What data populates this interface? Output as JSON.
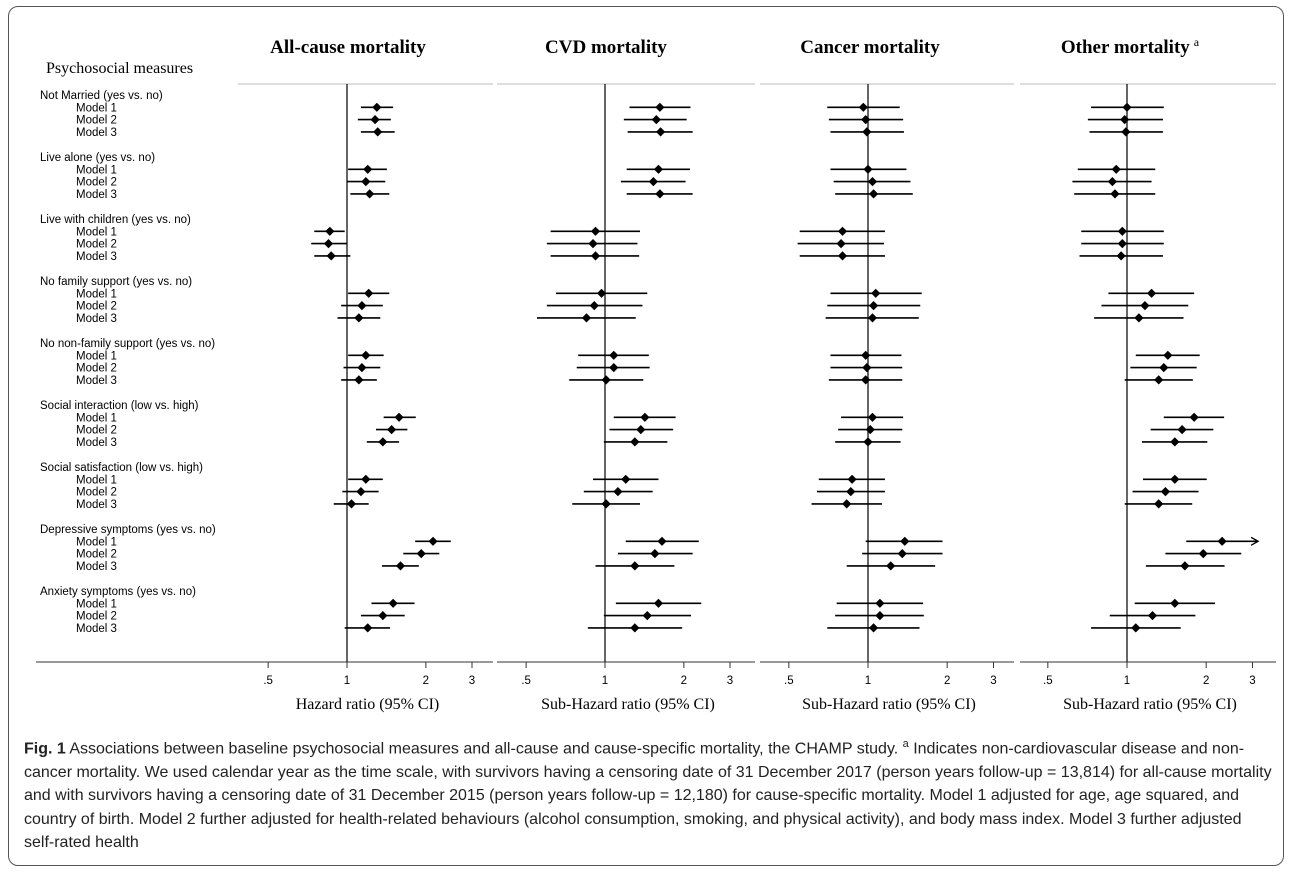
{
  "figure": {
    "row_header": "Psychosocial measures",
    "caption_label": "Fig. 1",
    "caption_text_1": " Associations between baseline psychosocial measures and all-cause and cause-specific mortality, the CHAMP study. ",
    "caption_footnote_mark": "a",
    "caption_text_2": " Indicates non-cardiovascular disease and non-cancer mortality. We used calendar year as the time scale, with survivors having a censoring date of 31 December 2017 (person years follow-up = 13,814) for all-cause mortality and with survivors having a censoring date of 31 December 2015 (person years follow-up = 12,180) for cause-specific mortality. Model 1 adjusted for age, age squared, and country of birth. Model 2 further adjusted for health-related behaviours (alcohol consumption, smoking, and physical activity), and body mass index. Model 3 further adjusted self-rated health"
  },
  "colors": {
    "ink": "#000000",
    "axis": "#333333",
    "grid": "#bbbbbb"
  },
  "chart_data": {
    "type": "forest",
    "x_scale": "log",
    "xlim": [
      0.42,
      3.5
    ],
    "reference_line": 1,
    "ticks": [
      {
        "value": 0.5,
        "label": ".5"
      },
      {
        "value": 1,
        "label": "1"
      },
      {
        "value": 2,
        "label": "2"
      },
      {
        "value": 3,
        "label": "3"
      }
    ],
    "groups": [
      {
        "label": "Not Married (yes vs. no)",
        "models": [
          "Model 1",
          "Model 2",
          "Model 3"
        ]
      },
      {
        "label": "Live alone (yes vs. no)",
        "models": [
          "Model 1",
          "Model 2",
          "Model 3"
        ]
      },
      {
        "label": "Live with children (yes vs. no)",
        "models": [
          "Model 1",
          "Model 2",
          "Model 3"
        ]
      },
      {
        "label": "No family support (yes vs. no)",
        "models": [
          "Model 1",
          "Model 2",
          "Model 3"
        ]
      },
      {
        "label": "No non-family support (yes vs. no)",
        "models": [
          "Model 1",
          "Model 2",
          "Model 3"
        ]
      },
      {
        "label": "Social interaction (low vs. high)",
        "models": [
          "Model 1",
          "Model 2",
          "Model 3"
        ]
      },
      {
        "label": "Social satisfaction (low vs. high)",
        "models": [
          "Model 1",
          "Model 2",
          "Model 3"
        ]
      },
      {
        "label": "Depressive symptoms (yes vs. no)",
        "models": [
          "Model 1",
          "Model 2",
          "Model 3"
        ]
      },
      {
        "label": "Anxiety symptoms (yes vs. no)",
        "models": [
          "Model 1",
          "Model 2",
          "Model 3"
        ]
      }
    ],
    "panels": [
      {
        "title": "All-cause mortality",
        "title_sup": "",
        "xlabel": "Hazard ratio (95% CI)",
        "estimates": [
          [
            [
              1.3,
              1.13,
              1.5
            ],
            [
              1.28,
              1.1,
              1.47
            ],
            [
              1.31,
              1.13,
              1.52
            ]
          ],
          [
            [
              1.2,
              1.01,
              1.42
            ],
            [
              1.18,
              1.0,
              1.4
            ],
            [
              1.22,
              1.03,
              1.45
            ]
          ],
          [
            [
              0.86,
              0.75,
              0.98
            ],
            [
              0.85,
              0.73,
              1.0
            ],
            [
              0.87,
              0.75,
              1.03
            ]
          ],
          [
            [
              1.21,
              1.01,
              1.45
            ],
            [
              1.14,
              0.95,
              1.37
            ],
            [
              1.11,
              0.92,
              1.34
            ]
          ],
          [
            [
              1.18,
              1.01,
              1.38
            ],
            [
              1.14,
              0.97,
              1.34
            ],
            [
              1.11,
              0.95,
              1.3
            ]
          ],
          [
            [
              1.58,
              1.38,
              1.83
            ],
            [
              1.48,
              1.29,
              1.7
            ],
            [
              1.37,
              1.19,
              1.58
            ]
          ],
          [
            [
              1.18,
              1.01,
              1.37
            ],
            [
              1.13,
              0.96,
              1.32
            ],
            [
              1.04,
              0.89,
              1.21
            ]
          ],
          [
            [
              2.13,
              1.82,
              2.49
            ],
            [
              1.92,
              1.64,
              2.25
            ],
            [
              1.6,
              1.36,
              1.88
            ]
          ],
          [
            [
              1.5,
              1.24,
              1.81
            ],
            [
              1.37,
              1.13,
              1.66
            ],
            [
              1.2,
              0.98,
              1.46
            ]
          ]
        ]
      },
      {
        "title": "CVD mortality",
        "title_sup": "",
        "xlabel": "Sub-Hazard ratio (95% CI)",
        "estimates": [
          [
            [
              1.62,
              1.24,
              2.12
            ],
            [
              1.57,
              1.18,
              2.05
            ],
            [
              1.63,
              1.22,
              2.16
            ]
          ],
          [
            [
              1.6,
              1.21,
              2.11
            ],
            [
              1.53,
              1.15,
              2.03
            ],
            [
              1.62,
              1.21,
              2.16
            ]
          ],
          [
            [
              0.92,
              0.62,
              1.36
            ],
            [
              0.9,
              0.6,
              1.33
            ],
            [
              0.92,
              0.62,
              1.35
            ]
          ],
          [
            [
              0.97,
              0.65,
              1.45
            ],
            [
              0.91,
              0.6,
              1.39
            ],
            [
              0.85,
              0.55,
              1.31
            ]
          ],
          [
            [
              1.08,
              0.79,
              1.47
            ],
            [
              1.08,
              0.78,
              1.48
            ],
            [
              1.01,
              0.73,
              1.4
            ]
          ],
          [
            [
              1.42,
              1.08,
              1.86
            ],
            [
              1.37,
              1.04,
              1.82
            ],
            [
              1.3,
              0.99,
              1.73
            ]
          ],
          [
            [
              1.2,
              0.9,
              1.6
            ],
            [
              1.12,
              0.83,
              1.52
            ],
            [
              1.01,
              0.75,
              1.36
            ]
          ],
          [
            [
              1.65,
              1.2,
              2.28
            ],
            [
              1.55,
              1.12,
              2.16
            ],
            [
              1.3,
              0.92,
              1.84
            ]
          ],
          [
            [
              1.6,
              1.1,
              2.33
            ],
            [
              1.45,
              0.99,
              2.13
            ],
            [
              1.3,
              0.86,
              1.97
            ]
          ]
        ]
      },
      {
        "title": "Cancer mortality",
        "title_sup": "",
        "xlabel": "Sub-Hazard ratio (95% CI)",
        "estimates": [
          [
            [
              0.96,
              0.7,
              1.32
            ],
            [
              0.98,
              0.71,
              1.36
            ],
            [
              0.99,
              0.72,
              1.37
            ]
          ],
          [
            [
              1.0,
              0.72,
              1.4
            ],
            [
              1.04,
              0.74,
              1.45
            ],
            [
              1.05,
              0.75,
              1.48
            ]
          ],
          [
            [
              0.8,
              0.55,
              1.16
            ],
            [
              0.79,
              0.54,
              1.15
            ],
            [
              0.8,
              0.55,
              1.16
            ]
          ],
          [
            [
              1.07,
              0.72,
              1.6
            ],
            [
              1.05,
              0.7,
              1.58
            ],
            [
              1.04,
              0.69,
              1.56
            ]
          ],
          [
            [
              0.98,
              0.72,
              1.34
            ],
            [
              0.99,
              0.72,
              1.35
            ],
            [
              0.98,
              0.71,
              1.35
            ]
          ],
          [
            [
              1.04,
              0.79,
              1.36
            ],
            [
              1.02,
              0.77,
              1.35
            ],
            [
              1.0,
              0.75,
              1.33
            ]
          ],
          [
            [
              0.87,
              0.65,
              1.16
            ],
            [
              0.86,
              0.64,
              1.16
            ],
            [
              0.83,
              0.61,
              1.13
            ]
          ],
          [
            [
              1.38,
              0.98,
              1.92
            ],
            [
              1.35,
              0.95,
              1.92
            ],
            [
              1.22,
              0.83,
              1.8
            ]
          ],
          [
            [
              1.11,
              0.76,
              1.62
            ],
            [
              1.11,
              0.75,
              1.63
            ],
            [
              1.05,
              0.7,
              1.57
            ]
          ]
        ]
      },
      {
        "title": "Other mortality",
        "title_sup": "a",
        "xlabel": "Sub-Hazard ratio (95% CI)",
        "arrow_row": [
          7,
          0
        ],
        "estimates": [
          [
            [
              1.0,
              0.73,
              1.38
            ],
            [
              0.98,
              0.71,
              1.37
            ],
            [
              0.99,
              0.72,
              1.37
            ]
          ],
          [
            [
              0.91,
              0.65,
              1.28
            ],
            [
              0.88,
              0.62,
              1.24
            ],
            [
              0.9,
              0.63,
              1.28
            ]
          ],
          [
            [
              0.96,
              0.67,
              1.38
            ],
            [
              0.96,
              0.67,
              1.38
            ],
            [
              0.95,
              0.66,
              1.37
            ]
          ],
          [
            [
              1.24,
              0.85,
              1.8
            ],
            [
              1.17,
              0.8,
              1.71
            ],
            [
              1.11,
              0.75,
              1.64
            ]
          ],
          [
            [
              1.43,
              1.08,
              1.89
            ],
            [
              1.38,
              1.03,
              1.84
            ],
            [
              1.32,
              0.98,
              1.78
            ]
          ],
          [
            [
              1.8,
              1.38,
              2.34
            ],
            [
              1.62,
              1.23,
              2.13
            ],
            [
              1.52,
              1.14,
              2.02
            ]
          ],
          [
            [
              1.52,
              1.15,
              2.01
            ],
            [
              1.4,
              1.05,
              1.87
            ],
            [
              1.32,
              0.98,
              1.77
            ]
          ],
          [
            [
              2.3,
              1.68,
              3.15
            ],
            [
              1.95,
              1.4,
              2.72
            ],
            [
              1.66,
              1.18,
              2.35
            ]
          ],
          [
            [
              1.52,
              1.07,
              2.16
            ],
            [
              1.25,
              0.86,
              1.82
            ],
            [
              1.08,
              0.73,
              1.6
            ]
          ]
        ]
      }
    ]
  }
}
